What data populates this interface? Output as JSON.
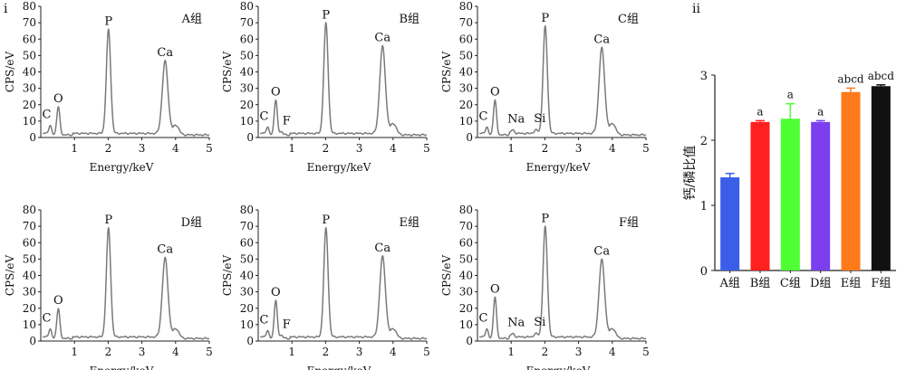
{
  "panel_labels": {
    "left": "i",
    "right": "ii"
  },
  "colors": {
    "spectrum": "#7a7a7a",
    "axis": "#222222",
    "text": "#111111"
  },
  "eds": {
    "xlabel": "Energy/keV",
    "ylabel": "CPS/eV",
    "xticks": [
      1,
      2,
      3,
      4,
      5
    ],
    "yticks": [
      0,
      10,
      20,
      30,
      40,
      50,
      60,
      70,
      80
    ],
    "xlim": [
      0,
      5
    ],
    "ylim": [
      0,
      80
    ]
  },
  "chart_data": [
    {
      "type": "line",
      "title": "A组",
      "xlabel": "Energy/keV",
      "ylabel": "CPS/eV",
      "xlim": [
        0,
        5
      ],
      "ylim": [
        0,
        80
      ],
      "peaks": [
        {
          "element": "C",
          "energy": 0.28,
          "height": 5
        },
        {
          "element": "O",
          "energy": 0.52,
          "height": 17
        },
        {
          "element": "P",
          "energy": 2.01,
          "height": 63
        },
        {
          "element": "Ca",
          "energy": 3.69,
          "height": 44
        },
        {
          "element": "",
          "energy": 4.01,
          "height": 6
        }
      ],
      "annotations": [
        "C",
        "O",
        "P",
        "Ca"
      ]
    },
    {
      "type": "line",
      "title": "B组",
      "xlabel": "Energy/keV",
      "ylabel": "CPS/eV",
      "xlim": [
        0,
        5
      ],
      "ylim": [
        0,
        80
      ],
      "peaks": [
        {
          "element": "C",
          "energy": 0.28,
          "height": 4
        },
        {
          "element": "O",
          "energy": 0.52,
          "height": 21
        },
        {
          "element": "F",
          "energy": 0.68,
          "height": 2
        },
        {
          "element": "P",
          "energy": 2.01,
          "height": 67
        },
        {
          "element": "Ca",
          "energy": 3.69,
          "height": 53
        },
        {
          "element": "",
          "energy": 4.01,
          "height": 7
        }
      ],
      "annotations": [
        "C",
        "F",
        "O",
        "P",
        "Ca"
      ]
    },
    {
      "type": "line",
      "title": "C组",
      "xlabel": "Energy/keV",
      "ylabel": "CPS/eV",
      "xlim": [
        0,
        5
      ],
      "ylim": [
        0,
        80
      ],
      "peaks": [
        {
          "element": "C",
          "energy": 0.28,
          "height": 4
        },
        {
          "element": "O",
          "energy": 0.52,
          "height": 21
        },
        {
          "element": "Na",
          "energy": 1.04,
          "height": 2
        },
        {
          "element": "Si",
          "energy": 1.74,
          "height": 2
        },
        {
          "element": "P",
          "energy": 2.01,
          "height": 65
        },
        {
          "element": "Ca",
          "energy": 3.69,
          "height": 52
        },
        {
          "element": "",
          "energy": 4.01,
          "height": 7
        }
      ],
      "annotations": [
        "C",
        "Na",
        "Si",
        "O",
        "P",
        "Ca"
      ]
    },
    {
      "type": "line",
      "title": "D组",
      "xlabel": "Energy/keV",
      "ylabel": "CPS/eV",
      "xlim": [
        0,
        5
      ],
      "ylim": [
        0,
        80
      ],
      "peaks": [
        {
          "element": "C",
          "energy": 0.28,
          "height": 5
        },
        {
          "element": "O",
          "energy": 0.52,
          "height": 18
        },
        {
          "element": "P",
          "energy": 2.01,
          "height": 66
        },
        {
          "element": "Ca",
          "energy": 3.69,
          "height": 48
        },
        {
          "element": "",
          "energy": 4.01,
          "height": 6
        }
      ],
      "annotations": [
        "C",
        "O",
        "P",
        "Ca"
      ]
    },
    {
      "type": "line",
      "title": "E组",
      "xlabel": "Energy/keV",
      "ylabel": "CPS/eV",
      "xlim": [
        0,
        5
      ],
      "ylim": [
        0,
        80
      ],
      "peaks": [
        {
          "element": "C",
          "energy": 0.28,
          "height": 4
        },
        {
          "element": "O",
          "energy": 0.52,
          "height": 23
        },
        {
          "element": "F",
          "energy": 0.68,
          "height": 2
        },
        {
          "element": "P",
          "energy": 2.01,
          "height": 66
        },
        {
          "element": "Ca",
          "energy": 3.69,
          "height": 49
        },
        {
          "element": "",
          "energy": 4.01,
          "height": 6
        }
      ],
      "annotations": [
        "C",
        "F",
        "O",
        "P",
        "Ca"
      ]
    },
    {
      "type": "line",
      "title": "F组",
      "xlabel": "Energy/keV",
      "ylabel": "CPS/eV",
      "xlim": [
        0,
        5
      ],
      "ylim": [
        0,
        80
      ],
      "peaks": [
        {
          "element": "C",
          "energy": 0.28,
          "height": 5
        },
        {
          "element": "O",
          "energy": 0.52,
          "height": 25
        },
        {
          "element": "Na",
          "energy": 1.04,
          "height": 2
        },
        {
          "element": "Si",
          "energy": 1.74,
          "height": 2
        },
        {
          "element": "P",
          "energy": 2.01,
          "height": 67
        },
        {
          "element": "Ca",
          "energy": 3.69,
          "height": 47
        },
        {
          "element": "",
          "energy": 4.01,
          "height": 6
        }
      ],
      "annotations": [
        "C",
        "Na",
        "Si",
        "O",
        "P",
        "Ca"
      ]
    },
    {
      "type": "bar",
      "title": "",
      "xlabel": "",
      "ylabel": "钙/磷比值",
      "ylim": [
        0,
        3
      ],
      "yticks": [
        0,
        1,
        2,
        3
      ],
      "categories": [
        "A组",
        "B组",
        "C组",
        "D组",
        "E组",
        "F组"
      ],
      "values": [
        1.43,
        2.28,
        2.33,
        2.28,
        2.74,
        2.83
      ],
      "errors": [
        0.06,
        0.02,
        0.23,
        0.02,
        0.06,
        0.02
      ],
      "significance": [
        "",
        "a",
        "a",
        "a",
        "abcd",
        "abcd"
      ],
      "colors": [
        "#3a5ee8",
        "#ff2020",
        "#4dff33",
        "#7b3ff0",
        "#ff7a1a",
        "#111111"
      ]
    }
  ]
}
